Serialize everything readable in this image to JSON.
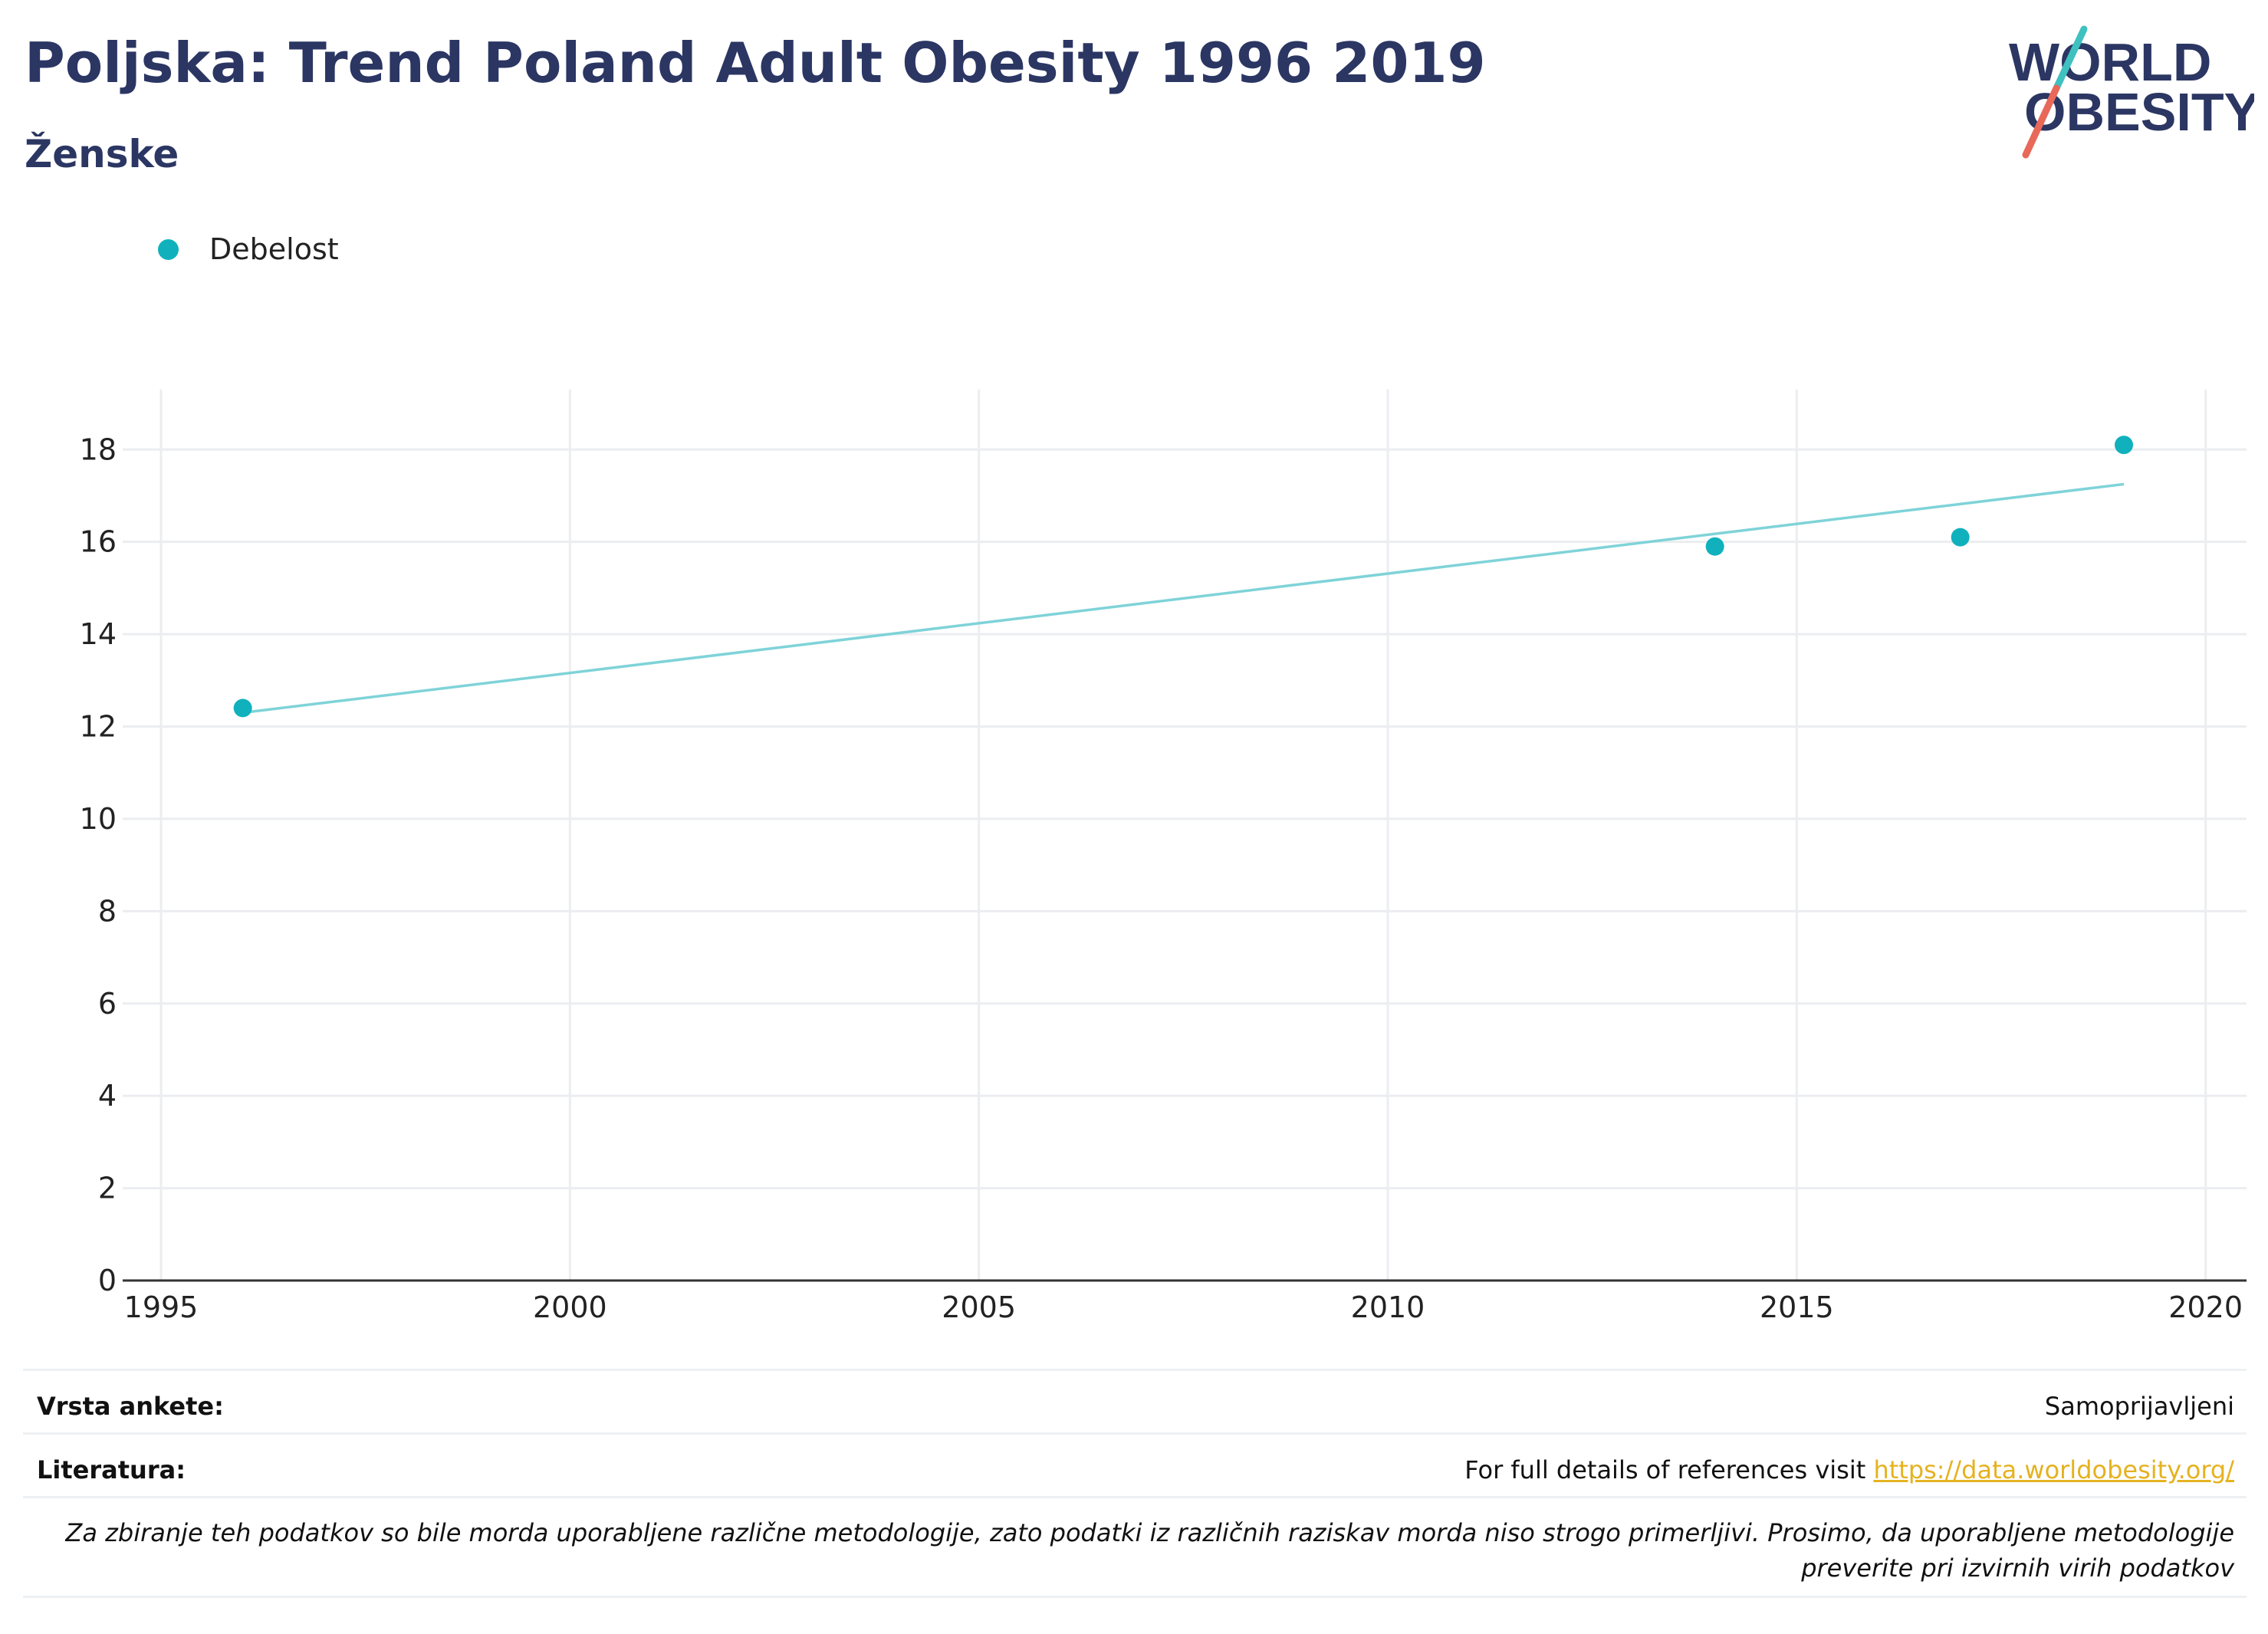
{
  "header": {
    "title": "Poljska: Trend Poland Adult Obesity 1996 2019",
    "subtitle": "Ženske"
  },
  "logo": {
    "line1": "WORLD",
    "line2": "OBESITY",
    "colors": {
      "text": "#2b3663",
      "teal": "#3fc1c0",
      "red": "#e8685a"
    }
  },
  "legend": {
    "label": "Debelost",
    "color": "#10b1bd"
  },
  "colors": {
    "point": "#10b1bd",
    "trend": "#7ed3d8",
    "grid": "#ebedf0",
    "axis": "#333333"
  },
  "chart_data": {
    "type": "scatter",
    "x_ticks": [
      1995,
      2000,
      2005,
      2010,
      2015,
      2020
    ],
    "y_ticks": [
      0,
      2,
      4,
      6,
      8,
      10,
      12,
      14,
      16,
      18
    ],
    "xlim": [
      1995,
      2020.5
    ],
    "ylim": [
      0,
      19.3
    ],
    "grid": true,
    "legend_position": "top-left",
    "series": [
      {
        "name": "Debelost",
        "x": [
          1996,
          2014,
          2017,
          2019
        ],
        "y": [
          12.4,
          15.9,
          16.1,
          18.1
        ]
      }
    ],
    "trendline": {
      "x": [
        1996,
        2019
      ],
      "y": [
        12.3,
        17.25
      ]
    }
  },
  "footer": {
    "survey_label": "Vrsta ankete:",
    "survey_value": "Samoprijavljeni",
    "refs_label": "Literatura:",
    "refs_text": "For full details of references visit ",
    "refs_link": "https://data.worldobesity.org/",
    "note_line1": "Za zbiranje teh podatkov so bile morda uporabljene različne metodologije, zato podatki iz različnih raziskav morda niso strogo primerljivi. Prosimo, da uporabljene metodologije",
    "note_line2": "preverite pri izvirnih virih podatkov"
  }
}
